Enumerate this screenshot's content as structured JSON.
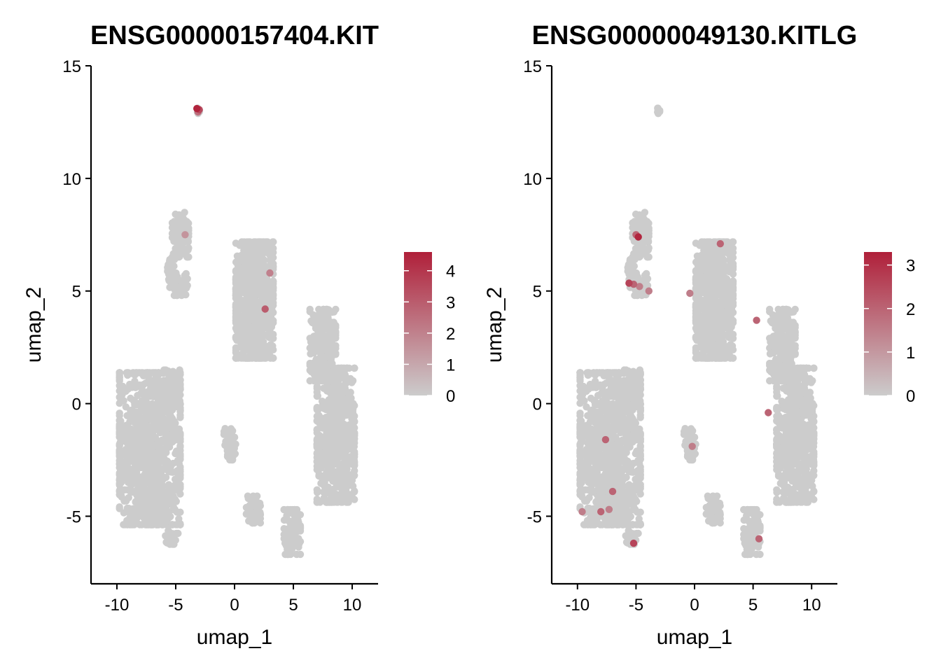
{
  "colors": {
    "low": "#CCCCCC",
    "high": "#B0203A",
    "axis": "#000000",
    "background": "#FFFFFF"
  },
  "chart_data": [
    {
      "type": "scatter",
      "title": "ENSG00000157404.KIT",
      "xlabel": "umap_1",
      "ylabel": "umap_2",
      "xlim": [
        -12.2,
        12.2
      ],
      "ylim": [
        -8,
        15
      ],
      "xticks": [
        -10,
        -5,
        0,
        5,
        10
      ],
      "xtick_labels": [
        "-10",
        "-5",
        "0",
        "5",
        "10"
      ],
      "yticks": [
        -5,
        0,
        5,
        10,
        15
      ],
      "ytick_labels": [
        "-5",
        "0",
        "5",
        "10",
        "15"
      ],
      "color_scale": {
        "min": 0,
        "max": 4.6,
        "ticks": [
          0,
          1,
          2,
          3,
          4
        ],
        "tick_labels": [
          "0",
          "1",
          "2",
          "3",
          "4"
        ]
      },
      "legend_position": "right",
      "grid": false,
      "clusters": [
        {
          "cx": -7.2,
          "cy": -2.0,
          "rx": 2.6,
          "ry": 3.4,
          "n": 900
        },
        {
          "cx": -5.6,
          "cy": 0.6,
          "rx": 1.0,
          "ry": 0.9,
          "n": 90
        },
        {
          "cx": -7.0,
          "cy": -4.8,
          "rx": 1.3,
          "ry": 0.5,
          "n": 80
        },
        {
          "cx": -5.5,
          "cy": -5.9,
          "rx": 0.7,
          "ry": 0.35,
          "n": 20
        },
        {
          "cx": 1.7,
          "cy": 4.6,
          "rx": 1.6,
          "ry": 2.6,
          "n": 700
        },
        {
          "cx": 1.5,
          "cy": 2.9,
          "rx": 0.9,
          "ry": 0.8,
          "n": 80
        },
        {
          "cx": 8.6,
          "cy": -1.4,
          "rx": 1.6,
          "ry": 3.0,
          "n": 650
        },
        {
          "cx": 7.5,
          "cy": 2.6,
          "rx": 1.1,
          "ry": 1.6,
          "n": 220
        },
        {
          "cx": 4.9,
          "cy": -5.7,
          "rx": 0.7,
          "ry": 1.0,
          "n": 110
        },
        {
          "cx": 1.6,
          "cy": -4.7,
          "rx": 0.6,
          "ry": 0.6,
          "n": 50
        },
        {
          "cx": -0.4,
          "cy": -1.8,
          "rx": 0.5,
          "ry": 0.7,
          "n": 50
        },
        {
          "cx": -4.6,
          "cy": 7.5,
          "rx": 0.7,
          "ry": 1.0,
          "n": 90
        },
        {
          "cx": -4.8,
          "cy": 5.3,
          "rx": 0.8,
          "ry": 0.5,
          "n": 70
        },
        {
          "cx": -5.4,
          "cy": 6.0,
          "rx": 0.3,
          "ry": 0.4,
          "n": 20
        },
        {
          "cx": -3.1,
          "cy": 13.0,
          "rx": 0.12,
          "ry": 0.12,
          "n": 8
        }
      ],
      "expressing_cells": [
        {
          "x": -3.2,
          "y": 13.1,
          "v": 4.5
        },
        {
          "x": -3.0,
          "y": 13.05,
          "v": 3.5
        },
        {
          "x": -3.1,
          "y": 12.95,
          "v": 2.5
        },
        {
          "x": 2.6,
          "y": 4.2,
          "v": 3.0
        },
        {
          "x": 3.0,
          "y": 5.8,
          "v": 2.0
        },
        {
          "x": -4.2,
          "y": 7.5,
          "v": 1.5
        }
      ]
    },
    {
      "type": "scatter",
      "title": "ENSG00000049130.KITLG",
      "xlabel": "umap_1",
      "ylabel": "umap_2",
      "xlim": [
        -12.2,
        12.2
      ],
      "ylim": [
        -8,
        15
      ],
      "xticks": [
        -10,
        -5,
        0,
        5,
        10
      ],
      "xtick_labels": [
        "-10",
        "-5",
        "0",
        "5",
        "10"
      ],
      "yticks": [
        -5,
        0,
        5,
        10,
        15
      ],
      "ytick_labels": [
        "-5",
        "0",
        "5",
        "10",
        "15"
      ],
      "color_scale": {
        "min": 0,
        "max": 3.3,
        "ticks": [
          0,
          1,
          2,
          3
        ],
        "tick_labels": [
          "0",
          "1",
          "2",
          "3"
        ]
      },
      "legend_position": "right",
      "grid": false,
      "clusters": [
        {
          "cx": -7.2,
          "cy": -2.0,
          "rx": 2.6,
          "ry": 3.4,
          "n": 900
        },
        {
          "cx": -5.6,
          "cy": 0.6,
          "rx": 1.0,
          "ry": 0.9,
          "n": 90
        },
        {
          "cx": -7.0,
          "cy": -4.8,
          "rx": 1.3,
          "ry": 0.5,
          "n": 80
        },
        {
          "cx": -5.5,
          "cy": -5.9,
          "rx": 0.7,
          "ry": 0.35,
          "n": 20
        },
        {
          "cx": 1.7,
          "cy": 4.6,
          "rx": 1.6,
          "ry": 2.6,
          "n": 700
        },
        {
          "cx": 1.5,
          "cy": 2.9,
          "rx": 0.9,
          "ry": 0.8,
          "n": 80
        },
        {
          "cx": 8.6,
          "cy": -1.4,
          "rx": 1.6,
          "ry": 3.0,
          "n": 650
        },
        {
          "cx": 7.5,
          "cy": 2.6,
          "rx": 1.1,
          "ry": 1.6,
          "n": 220
        },
        {
          "cx": 4.9,
          "cy": -5.7,
          "rx": 0.7,
          "ry": 1.0,
          "n": 110
        },
        {
          "cx": 1.6,
          "cy": -4.7,
          "rx": 0.6,
          "ry": 0.6,
          "n": 50
        },
        {
          "cx": -0.4,
          "cy": -1.8,
          "rx": 0.5,
          "ry": 0.7,
          "n": 50
        },
        {
          "cx": -4.6,
          "cy": 7.5,
          "rx": 0.7,
          "ry": 1.0,
          "n": 90
        },
        {
          "cx": -4.8,
          "cy": 5.3,
          "rx": 0.8,
          "ry": 0.5,
          "n": 70
        },
        {
          "cx": -5.4,
          "cy": 6.0,
          "rx": 0.3,
          "ry": 0.4,
          "n": 20
        },
        {
          "cx": -3.1,
          "cy": 13.0,
          "rx": 0.12,
          "ry": 0.12,
          "n": 8
        }
      ],
      "expressing_cells": [
        {
          "x": -4.8,
          "y": 7.4,
          "v": 3.2
        },
        {
          "x": -5.0,
          "y": 7.5,
          "v": 2.0
        },
        {
          "x": -5.6,
          "y": 5.35,
          "v": 2.6
        },
        {
          "x": -5.2,
          "y": 5.3,
          "v": 2.0
        },
        {
          "x": -4.7,
          "y": 5.2,
          "v": 1.5
        },
        {
          "x": -3.9,
          "y": 5.0,
          "v": 1.5
        },
        {
          "x": -0.4,
          "y": 4.9,
          "v": 1.5
        },
        {
          "x": 2.2,
          "y": 7.1,
          "v": 2.0
        },
        {
          "x": 5.3,
          "y": 3.7,
          "v": 2.0
        },
        {
          "x": 6.3,
          "y": -0.4,
          "v": 2.0
        },
        {
          "x": -7.6,
          "y": -1.6,
          "v": 2.0
        },
        {
          "x": -7.0,
          "y": -3.9,
          "v": 2.0
        },
        {
          "x": -9.6,
          "y": -4.8,
          "v": 1.5
        },
        {
          "x": -8.0,
          "y": -4.8,
          "v": 2.0
        },
        {
          "x": -7.3,
          "y": -4.7,
          "v": 1.5
        },
        {
          "x": -5.2,
          "y": -6.2,
          "v": 2.6
        },
        {
          "x": -0.2,
          "y": -1.9,
          "v": 1.5
        },
        {
          "x": 5.5,
          "y": -6.0,
          "v": 2.0
        }
      ]
    }
  ]
}
